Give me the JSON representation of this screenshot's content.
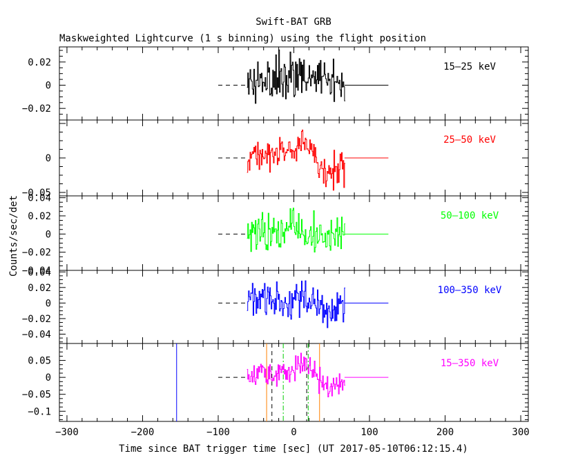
{
  "title": "Swift-BAT GRB",
  "subtitle": "Maskweighted Lightcurve (1 s binning) using the flight position",
  "chart_data": {
    "type": "line",
    "xlabel": "Time since BAT trigger time [sec] (UT 2017-05-10T06:12:15.4)",
    "ylabel": "Counts/sec/det",
    "xlim": [
      -310,
      310
    ],
    "x_ticks": [
      -300,
      -200,
      -100,
      0,
      100,
      200,
      300
    ],
    "x_tick_labels": [
      "−300",
      "−200",
      "−100",
      "0",
      "100",
      "200",
      "300"
    ],
    "data_span": [
      -62,
      67
    ],
    "flat_segment": [
      67,
      125
    ],
    "dashed_zero_from": -100,
    "panels": [
      {
        "band": "15–25 keV",
        "color": "#000000",
        "ylim": [
          -0.03,
          0.033
        ],
        "y_ticks": [
          0.02,
          0,
          -0.02
        ],
        "y_tick_labels": [
          "0.02",
          "0",
          "−0.02"
        ],
        "noise": 0.011,
        "signal": [
          [
            -62,
            0.0
          ],
          [
            -25,
            0.002
          ],
          [
            -10,
            0.006
          ],
          [
            5,
            0.009
          ],
          [
            20,
            0.006
          ],
          [
            35,
            0.002
          ],
          [
            50,
            -0.002
          ],
          [
            67,
            -0.004
          ]
        ]
      },
      {
        "band": "25–50 keV",
        "color": "#ff0000",
        "ylim": [
          -0.055,
          0.055
        ],
        "y_ticks": [
          0,
          -0.05
        ],
        "y_tick_labels": [
          "0",
          "−0.05"
        ],
        "noise": 0.011,
        "signal": [
          [
            -62,
            0.004
          ],
          [
            -30,
            0.005
          ],
          [
            -10,
            0.01
          ],
          [
            5,
            0.018
          ],
          [
            18,
            0.024
          ],
          [
            25,
            0.012
          ],
          [
            35,
            -0.018
          ],
          [
            50,
            -0.02
          ],
          [
            67,
            -0.012
          ]
        ]
      },
      {
        "band": "50–100 keV",
        "color": "#00ff00",
        "ylim": [
          -0.04,
          0.042
        ],
        "y_ticks": [
          0.04,
          0.02,
          0,
          -0.02,
          -0.04
        ],
        "y_tick_labels": [
          "0.04",
          "0.02",
          "0",
          "−0.02",
          "−0.04"
        ],
        "noise": 0.011,
        "signal": [
          [
            -62,
            0.0
          ],
          [
            -20,
            0.002
          ],
          [
            0,
            0.006
          ],
          [
            15,
            0.004
          ],
          [
            30,
            -0.004
          ],
          [
            50,
            0.0
          ],
          [
            67,
            0.0
          ]
        ]
      },
      {
        "band": "100–350 keV",
        "color": "#0000ff",
        "ylim": [
          -0.052,
          0.042
        ],
        "y_ticks": [
          0.04,
          0.02,
          0,
          -0.02,
          -0.04
        ],
        "y_tick_labels": [
          "0.04",
          "0.02",
          "0",
          "−0.02",
          "−0.04"
        ],
        "noise": 0.013,
        "signal": [
          [
            -62,
            0.0
          ],
          [
            -10,
            0.004
          ],
          [
            10,
            0.006
          ],
          [
            30,
            -0.004
          ],
          [
            50,
            -0.002
          ],
          [
            67,
            0.0
          ]
        ]
      },
      {
        "band": "15–350 keV",
        "color": "#ff00ff",
        "ylim": [
          -0.13,
          0.1
        ],
        "y_ticks": [
          0.05,
          0,
          -0.05,
          -0.1
        ],
        "y_tick_labels": [
          "0.05",
          "0",
          "−0.05",
          "−0.1"
        ],
        "noise": 0.018,
        "signal": [
          [
            -62,
            0.005
          ],
          [
            -30,
            0.01
          ],
          [
            -10,
            0.022
          ],
          [
            5,
            0.03
          ],
          [
            15,
            0.048
          ],
          [
            22,
            0.025
          ],
          [
            35,
            -0.025
          ],
          [
            50,
            -0.03
          ],
          [
            67,
            -0.018
          ]
        ],
        "markers": [
          {
            "x": -155,
            "color": "#0000ff",
            "style": "solid"
          },
          {
            "x": -36,
            "color": "#ff8000",
            "style": "solid"
          },
          {
            "x": -29,
            "color": "#000000",
            "style": "dashed"
          },
          {
            "x": -14,
            "color": "#00cc00",
            "style": "dashdot"
          },
          {
            "x": 17,
            "color": "#000000",
            "style": "dashed"
          },
          {
            "x": 19,
            "color": "#00cc00",
            "style": "dashdot"
          },
          {
            "x": 34,
            "color": "#ff8000",
            "style": "solid"
          }
        ]
      }
    ]
  }
}
